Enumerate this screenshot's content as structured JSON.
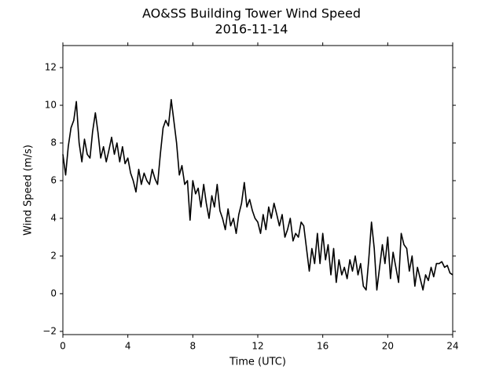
{
  "chart_data": {
    "type": "line",
    "title": "AO&SS Building Tower Wind Speed",
    "subtitle": "2016-11-14",
    "x_label": "Time (UTC)",
    "y_label": "Wind Speed (m/s)",
    "color": "#000000",
    "x": [
      0,
      0.17,
      0.33,
      0.5,
      0.67,
      0.83,
      1,
      1.17,
      1.33,
      1.5,
      1.67,
      1.83,
      2,
      2.17,
      2.33,
      2.5,
      2.67,
      2.83,
      3,
      3.17,
      3.33,
      3.5,
      3.67,
      3.83,
      4,
      4.17,
      4.33,
      4.5,
      4.67,
      4.83,
      5,
      5.17,
      5.33,
      5.5,
      5.67,
      5.83,
      6,
      6.17,
      6.33,
      6.5,
      6.67,
      6.83,
      7,
      7.17,
      7.33,
      7.5,
      7.67,
      7.83,
      8,
      8.17,
      8.33,
      8.5,
      8.67,
      8.83,
      9,
      9.17,
      9.33,
      9.5,
      9.67,
      9.83,
      10,
      10.17,
      10.33,
      10.5,
      10.67,
      10.83,
      11,
      11.17,
      11.33,
      11.5,
      11.67,
      11.83,
      12,
      12.17,
      12.33,
      12.5,
      12.67,
      12.83,
      13,
      13.17,
      13.33,
      13.5,
      13.67,
      13.83,
      14,
      14.17,
      14.33,
      14.5,
      14.67,
      14.83,
      15,
      15.17,
      15.33,
      15.5,
      15.67,
      15.83,
      16,
      16.17,
      16.33,
      16.5,
      16.67,
      16.83,
      17,
      17.17,
      17.33,
      17.5,
      17.67,
      17.83,
      18,
      18.17,
      18.33,
      18.5,
      18.67,
      18.83,
      19,
      19.17,
      19.33,
      19.5,
      19.67,
      19.83,
      20,
      20.17,
      20.33,
      20.5,
      20.67,
      20.83,
      21,
      21.17,
      21.33,
      21.5,
      21.67,
      21.83,
      22,
      22.17,
      22.33,
      22.5,
      22.67,
      22.83,
      23,
      23.17,
      23.33,
      23.5,
      23.67,
      23.83,
      24
    ],
    "values": [
      7.4,
      6.3,
      7.8,
      8.8,
      9.2,
      10.2,
      8.0,
      7.0,
      8.2,
      7.4,
      7.2,
      8.6,
      9.6,
      8.5,
      7.2,
      7.8,
      7.0,
      7.6,
      8.3,
      7.4,
      8.0,
      7.0,
      7.8,
      6.9,
      7.2,
      6.4,
      6.0,
      5.4,
      6.6,
      5.8,
      6.4,
      6.0,
      5.8,
      6.6,
      6.1,
      5.8,
      7.4,
      8.8,
      9.2,
      8.9,
      10.3,
      9.2,
      8.0,
      6.3,
      6.8,
      5.8,
      6.0,
      3.9,
      6.0,
      5.3,
      5.6,
      4.6,
      5.8,
      4.8,
      4.0,
      5.2,
      4.6,
      5.8,
      4.4,
      4.0,
      3.4,
      4.5,
      3.6,
      4.0,
      3.2,
      4.2,
      4.8,
      5.9,
      4.6,
      5.0,
      4.4,
      4.0,
      3.8,
      3.2,
      4.2,
      3.4,
      4.6,
      4.0,
      4.8,
      4.2,
      3.6,
      4.2,
      3.0,
      3.4,
      4.0,
      2.8,
      3.2,
      3.0,
      3.8,
      3.6,
      2.4,
      1.2,
      2.4,
      1.6,
      3.2,
      1.6,
      3.2,
      1.8,
      2.6,
      1.0,
      2.4,
      0.6,
      1.8,
      1.0,
      1.4,
      0.8,
      1.8,
      1.2,
      2.0,
      1.0,
      1.6,
      0.4,
      0.2,
      1.8,
      3.8,
      2.4,
      0.2,
      1.4,
      2.6,
      1.6,
      3.0,
      0.8,
      2.2,
      1.4,
      0.6,
      3.2,
      2.6,
      2.4,
      1.2,
      2.0,
      0.4,
      1.4,
      0.8,
      0.2,
      1.0,
      0.7,
      1.4,
      0.9,
      1.6,
      1.6,
      1.7,
      1.4,
      1.5,
      1.1,
      1.0
    ],
    "xlim": [
      0,
      24
    ],
    "xticks": [
      0,
      4,
      8,
      12,
      16,
      20,
      24
    ],
    "ylim": [
      -2.17,
      13.17
    ],
    "yticks": [
      {
        "value": -2,
        "label": "−2"
      },
      0,
      2,
      4,
      6,
      8,
      10,
      12
    ]
  }
}
